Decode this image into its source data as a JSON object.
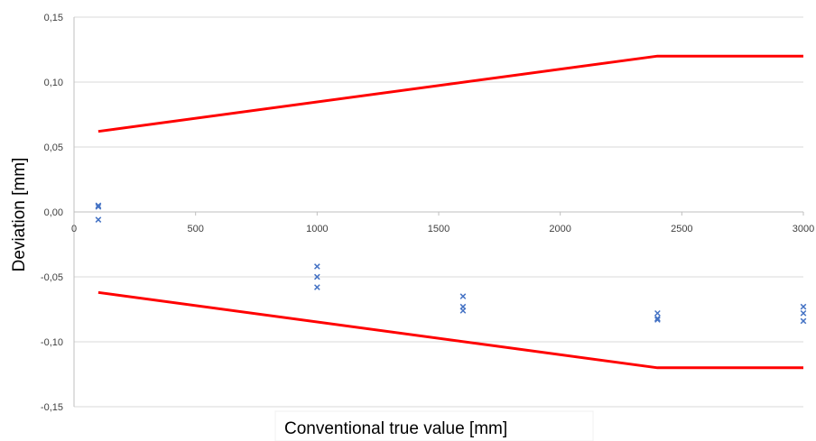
{
  "chart_data": {
    "type": "scatter",
    "title": "",
    "xlabel": "Conventional true value [mm]",
    "ylabel": "Deviation [mm]",
    "xlim": [
      0,
      3000
    ],
    "ylim": [
      -0.15,
      0.15
    ],
    "x_ticks": [
      "0",
      "500",
      "1000",
      "1500",
      "2000",
      "2500",
      "3000"
    ],
    "y_ticks": [
      "0,15",
      "0,10",
      "0,05",
      "0,00",
      "-0,05",
      "-0,10",
      "-0,15"
    ],
    "grid": "horizontal",
    "legend": "none",
    "series": [
      {
        "marker": "x",
        "color": "#4472c4",
        "points": [
          [
            100,
            0.005
          ],
          [
            100,
            0.004
          ],
          [
            100,
            -0.006
          ],
          [
            1000,
            -0.042
          ],
          [
            1000,
            -0.05
          ],
          [
            1000,
            -0.058
          ],
          [
            1600,
            -0.065
          ],
          [
            1600,
            -0.073
          ],
          [
            1600,
            -0.076
          ],
          [
            2400,
            -0.078
          ],
          [
            2400,
            -0.082
          ],
          [
            2400,
            -0.083
          ],
          [
            3000,
            -0.073
          ],
          [
            3000,
            -0.078
          ],
          [
            3000,
            -0.084
          ]
        ]
      },
      {
        "line": true,
        "color": "#ff0000",
        "points": [
          [
            100,
            0.062
          ],
          [
            2400,
            0.12
          ],
          [
            3000,
            0.12
          ]
        ]
      },
      {
        "line": true,
        "color": "#ff0000",
        "points": [
          [
            100,
            -0.062
          ],
          [
            2400,
            -0.12
          ],
          [
            3000,
            -0.12
          ]
        ]
      }
    ]
  }
}
